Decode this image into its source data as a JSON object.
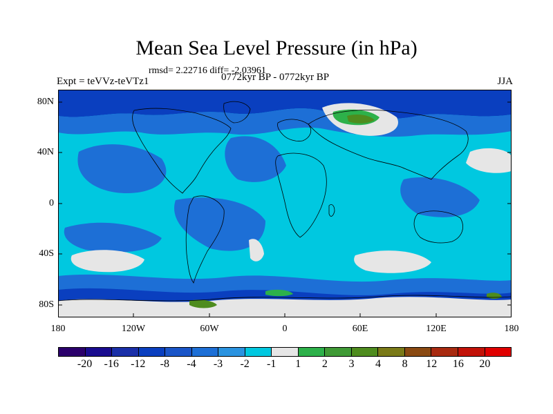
{
  "title": "Mean Sea Level Pressure (in hPa)",
  "stats": "rmsd= 2.22716 diff= -2.03961",
  "expt": "Expt = teVVz-teVTz1",
  "period": "0772kyr BP - 0772kyr BP",
  "season": "JJA",
  "colors": {
    "deep": "#0a3fbf",
    "mid": "#1d6fd6",
    "light": "#00c8e0",
    "neutral": "#e6e6e6",
    "green": "#2db14a",
    "olive": "#4e8c1e"
  },
  "chart_data": {
    "type": "heatmap",
    "lat_ticks": [
      "80N",
      "40N",
      "0",
      "40S",
      "80S"
    ],
    "lon_ticks": [
      "180",
      "120W",
      "60W",
      "0",
      "60E",
      "120E",
      "180"
    ],
    "colorbar": {
      "levels": [
        "-20",
        "-16",
        "-12",
        "-8",
        "-4",
        "-3",
        "-2",
        "-1",
        "1",
        "2",
        "3",
        "4",
        "8",
        "12",
        "16",
        "20"
      ],
      "colors": [
        "#2b006b",
        "#1a0c8f",
        "#1a2fa8",
        "#0a3fbf",
        "#1a55c8",
        "#1d6fd6",
        "#2a93e0",
        "#00c8e0",
        "#e6e6e6",
        "#2db14a",
        "#3f9a35",
        "#4e8c1e",
        "#7a7a18",
        "#8a4a12",
        "#a82a10",
        "#c21208",
        "#e00000"
      ]
    }
  }
}
